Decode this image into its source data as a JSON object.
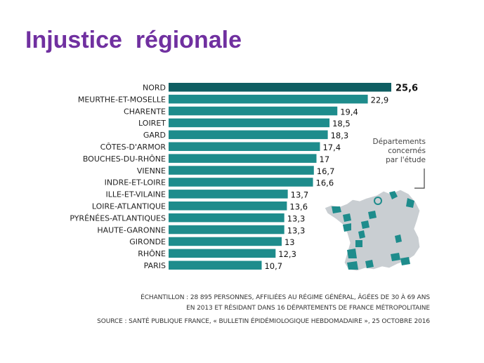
{
  "title": "Injustice  régionale",
  "chart_data": {
    "type": "bar",
    "orientation": "horizontal",
    "categories": [
      "NORD",
      "MEURTHE-ET-MOSELLE",
      "CHARENTE",
      "LOIRET",
      "GARD",
      "CÔTES-D'ARMOR",
      "BOUCHES-DU-RHÔNE",
      "VIENNE",
      "INDRE-ET-LOIRE",
      "ILLE-ET-VILAINE",
      "LOIRE-ATLANTIQUE",
      "PYRÉNÉES-ATLANTIQUES",
      "HAUTE-GARONNE",
      "GIRONDE",
      "RHÔNE",
      "PARIS"
    ],
    "values": [
      25.6,
      22.9,
      19.4,
      18.5,
      18.3,
      17.4,
      17,
      16.7,
      16.6,
      13.7,
      13.6,
      13.3,
      13.3,
      13,
      12.3,
      10.7
    ],
    "value_labels": [
      "25,6",
      "22,9",
      "19,4",
      "18,5",
      "18,3",
      "17,4",
      "17",
      "16,7",
      "16,6",
      "13,7",
      "13,6",
      "13,3",
      "13,3",
      "13",
      "12,3",
      "10,7"
    ],
    "highlight_index": 0,
    "title": "",
    "xlabel": "",
    "ylabel": "",
    "xlim": [
      0,
      25.6
    ],
    "grid": false,
    "legend": "none"
  },
  "colors": {
    "title": "#7030a0",
    "bar": "#1e8c8c",
    "bar_highlight": "#0f5e62",
    "map_fill": "#c9ced2",
    "map_highlight": "#1e8c8c"
  },
  "map": {
    "caption_lines": [
      "Départements",
      "concernés",
      "par l'étude"
    ]
  },
  "notes": {
    "sample_line1": "ÉCHANTILLON : 28 895 PERSONNES, AFFILIÉES AU RÉGIME GÉNÉRAL, ÂGÉES DE 30 À 69 ANS",
    "sample_line2": "EN 2013 ET RÉSIDANT DANS 16 DÉPARTEMENTS DE FRANCE MÉTROPOLITAINE",
    "source": "SOURCE :  SANTÉ PUBLIQUE FRANCE, « BULLETIN ÉPIDÉMIOLOGIQUE HEBDOMADAIRE », 25 OCTOBRE 2016"
  }
}
